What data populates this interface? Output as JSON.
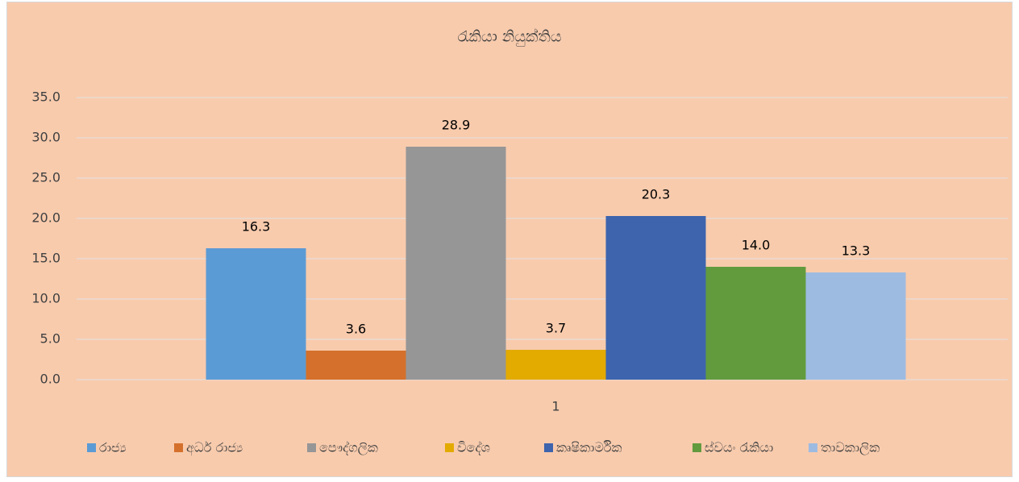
{
  "chart_data": {
    "type": "bar",
    "title": "රැකියා නියුක්තිය",
    "categories": [
      "1"
    ],
    "series": [
      {
        "name": "රාජ්‍ය",
        "color": "#5b9bd5",
        "values": [
          16.3
        ],
        "value_labels": [
          "16.3"
        ]
      },
      {
        "name": "අර්ධ රාජ්‍ය",
        "color": "#d4702c",
        "values": [
          3.6
        ],
        "value_labels": [
          "3.6"
        ]
      },
      {
        "name": "පෞද්ගලික",
        "color": "#969696",
        "values": [
          28.9
        ],
        "value_labels": [
          "28.9"
        ]
      },
      {
        "name": "විදේශ",
        "color": "#e3aa00",
        "values": [
          3.7
        ],
        "value_labels": [
          "3.7"
        ]
      },
      {
        "name": "කෘෂිකාර්මික",
        "color": "#3d64ad",
        "values": [
          20.3
        ],
        "value_labels": [
          "20.3"
        ]
      },
      {
        "name": "ස්වයං රැකියා",
        "color": "#629b3e",
        "values": [
          14.0
        ],
        "value_labels": [
          "14.0"
        ]
      },
      {
        "name": "තාවකාලික",
        "color": "#9dbbe1",
        "values": [
          13.3
        ],
        "value_labels": [
          "13.3"
        ]
      }
    ],
    "ylim": [
      0,
      35
    ],
    "yticks": [
      {
        "value": 0,
        "label": "0.0"
      },
      {
        "value": 5,
        "label": "5.0"
      },
      {
        "value": 10,
        "label": "10.0"
      },
      {
        "value": 15,
        "label": "15.0"
      },
      {
        "value": 20,
        "label": "20.0"
      },
      {
        "value": 25,
        "label": "25.0"
      },
      {
        "value": 30,
        "label": "30.0"
      },
      {
        "value": 35,
        "label": "35.0"
      }
    ],
    "grid": true,
    "legend": "bottom"
  }
}
